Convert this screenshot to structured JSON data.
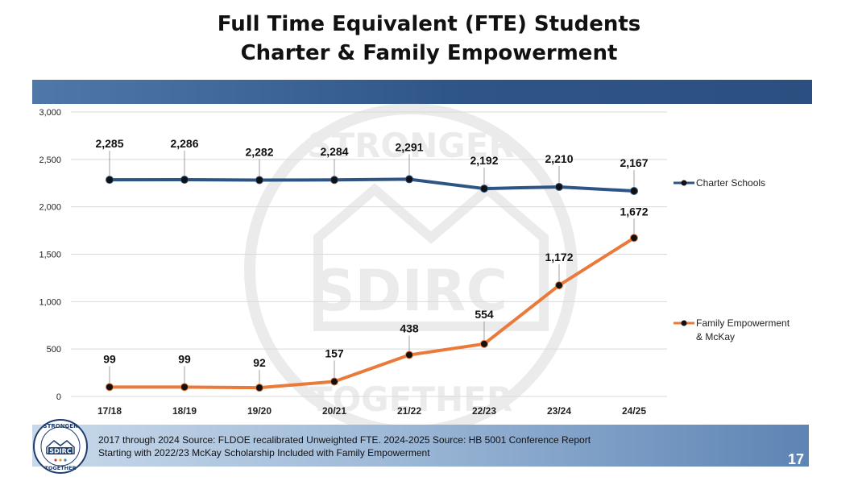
{
  "title": {
    "line1": "Full Time Equivalent (FTE) Students",
    "line2": "Charter & Family Empowerment"
  },
  "chart_data": {
    "type": "line",
    "categories": [
      "17/18",
      "18/19",
      "19/20",
      "20/21",
      "21/22",
      "22/23",
      "23/24",
      "24/25"
    ],
    "series": [
      {
        "name": "Charter Schools",
        "values": [
          2285,
          2286,
          2282,
          2284,
          2291,
          2192,
          2210,
          2167
        ],
        "labels": [
          "2,285",
          "2,286",
          "2,282",
          "2,284",
          "2,291",
          "2,192",
          "2,210",
          "2,167"
        ],
        "color": "#2e5486"
      },
      {
        "name": "Family Empowerment & McKay",
        "name_lines": [
          "Family Empowerment",
          "& McKay"
        ],
        "values": [
          99,
          99,
          92,
          157,
          438,
          554,
          1172,
          1672
        ],
        "labels": [
          "99",
          "99",
          "92",
          "157",
          "438",
          "554",
          "1,172",
          "1,672"
        ],
        "color": "#e97a3a"
      }
    ],
    "ylim": [
      0,
      3000
    ],
    "yticks": [
      0,
      500,
      1000,
      1500,
      2000,
      2500,
      3000
    ],
    "ytick_labels": [
      "0",
      "500",
      "1,000",
      "1,500",
      "2,000",
      "2,500",
      "3,000"
    ],
    "grid": true,
    "legend": "right"
  },
  "footer": {
    "line1": "2017 through 2024 Source: FLDOE recalibrated Unweighted FTE.  2024-2025 Source:  HB 5001 Conference Report",
    "line2": "Starting with 2022/23 McKay Scholarship Included with Family Empowerment",
    "page_number": "17"
  },
  "logo": {
    "top_text": "STRONGER",
    "center_text": "SDIRC",
    "bottom_text": "TOGETHER"
  },
  "watermark": {
    "top_text": "STRONGER",
    "center_text": "SDIRC",
    "bottom_text": "TOGETHER"
  },
  "colors": {
    "band_blue": "#2f5587",
    "charter_line": "#2e5486",
    "fes_line": "#e97a3a",
    "marker": "#111111"
  }
}
